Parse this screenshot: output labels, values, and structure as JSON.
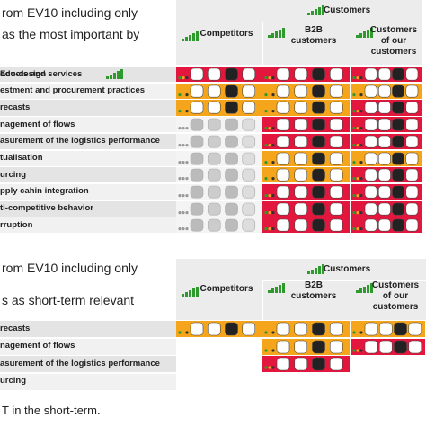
{
  "sections": [
    {
      "title_lines": [
        "rom EV10 including only",
        "as the most important by"
      ],
      "group_header": "Customers",
      "columns": [
        [
          "Competitors"
        ],
        [
          "B2B",
          "customers"
        ],
        [
          "Customers",
          "of our",
          "customers"
        ]
      ],
      "rows": [
        {
          "label": "oducts and services",
          "sublabel": "Eco-design",
          "cells": [
            "#e3173e",
            "#e3173e",
            "#e3173e"
          ]
        },
        {
          "label": "estment and procurement practices",
          "cells": [
            "#f4a51c",
            "#f4a51c",
            "#f4a51c"
          ]
        },
        {
          "label": "recasts",
          "cells": [
            "#f4a51c",
            "#f4a51c",
            "#e3173e"
          ]
        },
        {
          "label": "nagement of flows",
          "cells": [
            "#f4f4f4",
            "#e3173e",
            "#e3173e"
          ]
        },
        {
          "label": "asurement of the logistics performance",
          "cells": [
            "#f4f4f4",
            "#e3173e",
            "#e3173e"
          ]
        },
        {
          "label": "tualisation",
          "cells": [
            "#f4f4f4",
            "#f4a51c",
            "#f4a51c"
          ]
        },
        {
          "label": "urcing",
          "cells": [
            "#f4f4f4",
            "#f4a51c",
            "#e3173e"
          ]
        },
        {
          "label": "pply cahin integration",
          "cells": [
            "#f4f4f4",
            "#e3173e",
            "#e3173e"
          ]
        },
        {
          "label": "ti-competitive behavior",
          "cells": [
            "#f4f4f4",
            "#e3173e",
            "#e3173e"
          ]
        },
        {
          "label": "rruption",
          "cells": [
            "#f4f4f4",
            "#e3173e",
            "#e3173e"
          ]
        }
      ]
    },
    {
      "title_lines": [
        "rom EV10 including only",
        "s as short-term relevant"
      ],
      "group_header": "Customers",
      "columns": [
        [
          "Competitors"
        ],
        [
          "B2B",
          "customers"
        ],
        [
          "Customers",
          "of our",
          "customers"
        ]
      ],
      "rows": [
        {
          "label": "recasts",
          "cells": [
            "#f4a51c",
            "#f4a51c",
            "#f4a51c"
          ]
        },
        {
          "label": "nagement of flows",
          "cells": [
            null,
            "#f4a51c",
            "#e3173e"
          ]
        },
        {
          "label": "asurement of the logistics performance",
          "cells": [
            null,
            "#e3173e",
            null
          ]
        },
        {
          "label": "urcing",
          "cells": [
            null,
            null,
            null
          ]
        }
      ]
    }
  ],
  "footer": "T in the short-term."
}
